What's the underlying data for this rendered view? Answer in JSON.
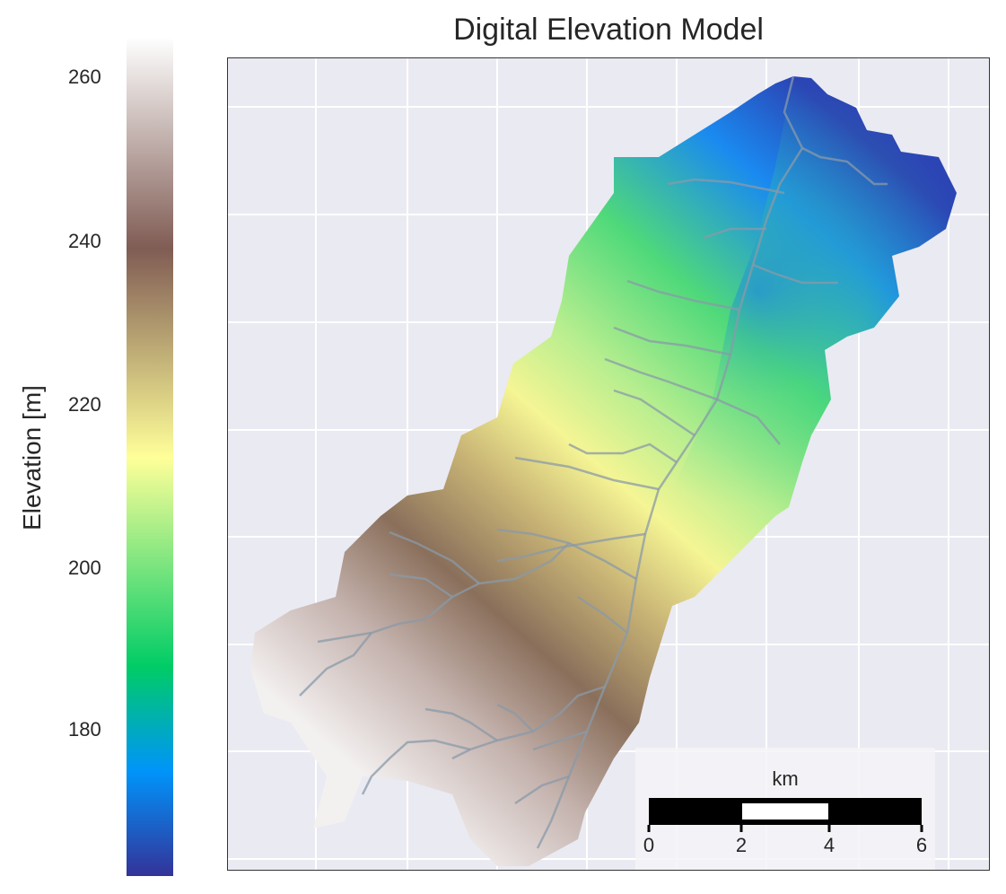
{
  "title": "Digital Elevation Model",
  "colorbar": {
    "label": "Elevation [m]",
    "ticks": [
      "180",
      "200",
      "220",
      "240",
      "260"
    ],
    "tick_values": [
      180,
      200,
      220,
      240,
      260
    ],
    "range": [
      163,
      265
    ],
    "colormap": "terrain",
    "stops": [
      "#333399",
      "#0094fa",
      "#00cc66",
      "#ffff99",
      "#805c54",
      "#fdfdfd"
    ]
  },
  "scalebar": {
    "unit": "km",
    "ticks": [
      "0",
      "2",
      "4",
      "6"
    ]
  },
  "grid": true
}
